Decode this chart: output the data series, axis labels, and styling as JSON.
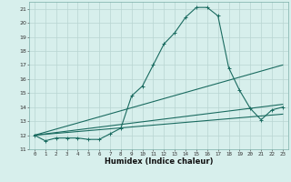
{
  "xlabel": "Humidex (Indice chaleur)",
  "bg_color": "#d7efec",
  "grid_color": "#b8d5d1",
  "line_color": "#1a6b60",
  "xlim": [
    -0.5,
    23.5
  ],
  "ylim": [
    11,
    21.5
  ],
  "yticks": [
    11,
    12,
    13,
    14,
    15,
    16,
    17,
    18,
    19,
    20,
    21
  ],
  "xticks": [
    0,
    1,
    2,
    3,
    4,
    5,
    6,
    7,
    8,
    9,
    10,
    11,
    12,
    13,
    14,
    15,
    16,
    17,
    18,
    19,
    20,
    21,
    22,
    23
  ],
  "series": [
    {
      "x": [
        0,
        1,
        2,
        3,
        4,
        5,
        6,
        7,
        8,
        9,
        10,
        11,
        12,
        13,
        14,
        15,
        16,
        17,
        18,
        19,
        20,
        21,
        22,
        23
      ],
      "y": [
        12.0,
        11.6,
        11.8,
        11.8,
        11.8,
        11.7,
        11.7,
        12.1,
        12.5,
        14.8,
        15.5,
        17.0,
        18.5,
        19.3,
        20.4,
        21.1,
        21.1,
        20.5,
        16.8,
        15.2,
        13.9,
        13.1,
        13.8,
        14.0
      ],
      "marker": "+"
    },
    {
      "x": [
        0,
        23
      ],
      "y": [
        12.0,
        17.0
      ],
      "marker": null
    },
    {
      "x": [
        0,
        23
      ],
      "y": [
        12.0,
        14.2
      ],
      "marker": null
    },
    {
      "x": [
        0,
        23
      ],
      "y": [
        12.0,
        13.5
      ],
      "marker": null
    }
  ]
}
